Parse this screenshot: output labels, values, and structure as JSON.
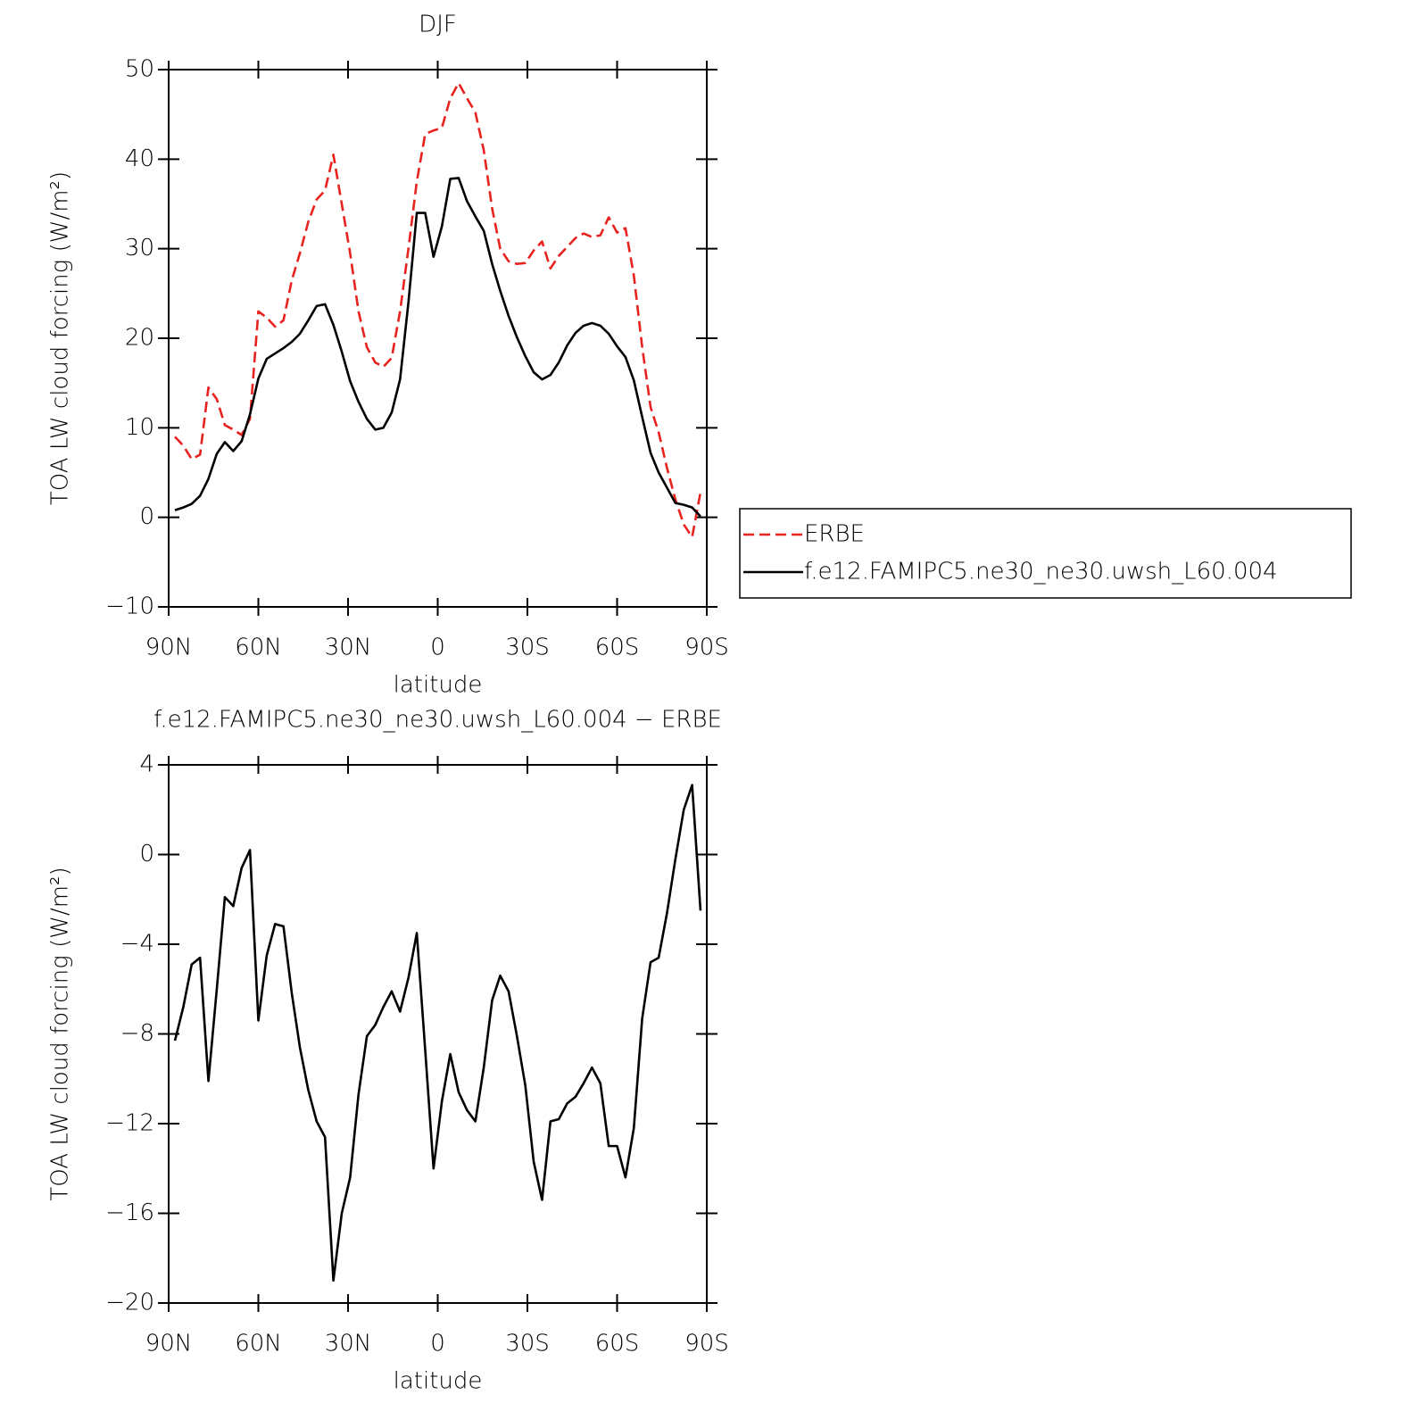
{
  "chart_data": [
    {
      "type": "line",
      "title": "DJF",
      "xlabel": "latitude",
      "ylabel": "TOA LW cloud forcing (W/m²)",
      "x": [
        87.9,
        85.1,
        82.3,
        79.5,
        76.7,
        73.9,
        71.2,
        68.4,
        65.6,
        62.8,
        60.0,
        57.2,
        54.4,
        51.6,
        48.8,
        46.1,
        43.3,
        40.5,
        37.7,
        34.9,
        32.1,
        29.3,
        26.5,
        23.7,
        20.9,
        18.2,
        15.4,
        12.6,
        9.8,
        7.0,
        4.2,
        1.4,
        -1.4,
        -4.2,
        -7.0,
        -9.8,
        -12.6,
        -15.4,
        -18.2,
        -20.9,
        -23.7,
        -26.5,
        -29.3,
        -32.1,
        -34.9,
        -37.7,
        -40.5,
        -43.3,
        -46.1,
        -48.8,
        -51.6,
        -54.4,
        -57.2,
        -60.0,
        -62.8,
        -65.6,
        -68.4,
        -71.2,
        -73.9,
        -76.7,
        -79.5,
        -82.3,
        -85.1,
        -87.9
      ],
      "series": [
        {
          "name": "ERBE",
          "color": "#e8231f",
          "line_style": "dashed",
          "values": [
            9,
            8,
            6.5,
            7,
            14.5,
            13.2,
            10.3,
            9.8,
            9.2,
            11,
            23,
            22.3,
            21.3,
            22,
            26.5,
            29.5,
            33,
            35.5,
            36.5,
            40.5,
            35,
            29.5,
            23,
            19,
            17.3,
            16.8,
            17.8,
            23,
            30,
            37.5,
            42.8,
            43.2,
            43.5,
            46.8,
            48.5,
            46.8,
            45.2,
            41,
            34.5,
            30,
            28.6,
            28.3,
            28.4,
            29.8,
            30.8,
            27.8,
            29.2,
            30.2,
            31.2,
            31.7,
            31.3,
            31.5,
            33.5,
            31.8,
            32.3,
            27,
            19,
            12.3,
            9.5,
            5.5,
            2,
            -0.8,
            -2.2,
            2.8
          ]
        },
        {
          "name": "f.e12.FAMIPC5.ne30_ne30.uwsh_L60.004",
          "color": "#000000",
          "line_style": "solid",
          "values": [
            0.8,
            1.1,
            1.5,
            2.4,
            4.3,
            7.1,
            8.4,
            7.4,
            8.5,
            11.5,
            15.5,
            17.7,
            18.3,
            18.9,
            19.6,
            20.5,
            22,
            23.6,
            23.8,
            21.5,
            18.5,
            15.2,
            12.9,
            11,
            9.8,
            10,
            11.7,
            15.4,
            24,
            34,
            34,
            29.1,
            32.5,
            37.8,
            37.9,
            35.3,
            33.6,
            32,
            28.3,
            25.3,
            22.5,
            20.1,
            18,
            16.2,
            15.4,
            15.9,
            17.3,
            19.2,
            20.6,
            21.4,
            21.7,
            21.4,
            20.5,
            19.1,
            17.9,
            15.3,
            11.2,
            7.2,
            5,
            3.3,
            1.6,
            1.4,
            1.1,
            0.1
          ]
        }
      ],
      "xlim": [
        90,
        -90
      ],
      "xticks": [
        {
          "value": 90,
          "label": "90N"
        },
        {
          "value": 60,
          "label": "60N"
        },
        {
          "value": 30,
          "label": "30N"
        },
        0,
        {
          "value": -30,
          "label": "30S"
        },
        {
          "value": -60,
          "label": "60S"
        },
        {
          "value": -90,
          "label": "90S"
        }
      ],
      "ylim": [
        -10,
        50
      ],
      "yticks": [
        {
          "value": -10,
          "label": "−10"
        },
        0,
        10,
        20,
        30,
        40,
        50
      ],
      "legend": "right"
    },
    {
      "type": "line",
      "title": "f.e12.FAMIPC5.ne30_ne30.uwsh_L60.004 − ERBE",
      "xlabel": "latitude",
      "ylabel": "TOA LW cloud forcing (W/m²)",
      "x": [
        87.9,
        85.1,
        82.3,
        79.5,
        76.7,
        73.9,
        71.2,
        68.4,
        65.6,
        62.8,
        60.0,
        57.2,
        54.4,
        51.6,
        48.8,
        46.1,
        43.3,
        40.5,
        37.7,
        34.9,
        32.1,
        29.3,
        26.5,
        23.7,
        20.9,
        18.2,
        15.4,
        12.6,
        9.8,
        7.0,
        4.2,
        1.4,
        -1.4,
        -4.2,
        -7.0,
        -9.8,
        -12.6,
        -15.4,
        -18.2,
        -20.9,
        -23.7,
        -26.5,
        -29.3,
        -32.1,
        -34.9,
        -37.7,
        -40.5,
        -43.3,
        -46.1,
        -48.8,
        -51.6,
        -54.4,
        -57.2,
        -60.0,
        -62.8,
        -65.6,
        -68.4,
        -71.2,
        -73.9,
        -76.7,
        -79.5,
        -82.3,
        -85.1,
        -87.9
      ],
      "series": [
        {
          "color": "#000000",
          "line_style": "solid",
          "values": [
            -8.3,
            -6.8,
            -4.9,
            -4.6,
            -10.1,
            -6,
            -1.9,
            -2.3,
            -0.6,
            0.2,
            -7.4,
            -4.5,
            -3.1,
            -3.2,
            -6.2,
            -8.6,
            -10.5,
            -11.9,
            -12.6,
            -19,
            -16,
            -14.4,
            -10.7,
            -8.1,
            -7.6,
            -6.8,
            -6.1,
            -7,
            -5.5,
            -3.5,
            -8.7,
            -14,
            -11,
            -8.9,
            -10.6,
            -11.4,
            -11.9,
            -9.5,
            -6.5,
            -5.4,
            -6.1,
            -8.1,
            -10.3,
            -13.7,
            -15.4,
            -11.9,
            -11.8,
            -11.1,
            -10.8,
            -10.2,
            -9.5,
            -10.2,
            -13,
            -13,
            -14.4,
            -12.2,
            -7.3,
            -4.8,
            -4.6,
            -2.6,
            -0.2,
            2,
            3.1,
            -2.5
          ]
        }
      ],
      "xlim": [
        90,
        -90
      ],
      "xticks": [
        {
          "value": 90,
          "label": "90N"
        },
        {
          "value": 60,
          "label": "60N"
        },
        {
          "value": 30,
          "label": "30N"
        },
        0,
        {
          "value": -30,
          "label": "30S"
        },
        {
          "value": -60,
          "label": "60S"
        },
        {
          "value": -90,
          "label": "90S"
        }
      ],
      "ylim": [
        -20,
        4
      ],
      "yticks": [
        {
          "value": -20,
          "label": "−20"
        },
        {
          "value": -16,
          "label": "−16"
        },
        {
          "value": -12,
          "label": "−12"
        },
        {
          "value": -8,
          "label": "−8"
        },
        {
          "value": -4,
          "label": "−4"
        },
        0,
        4
      ]
    }
  ]
}
